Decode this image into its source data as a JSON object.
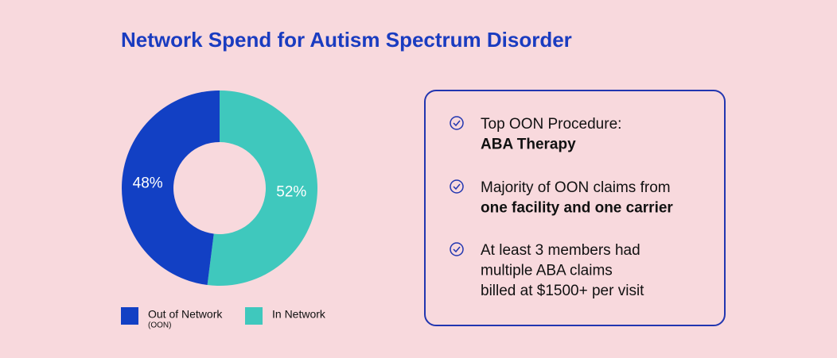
{
  "chart_data": {
    "type": "donut",
    "title": "Network Spend for Autism Spectrum Disorder",
    "categories": [
      "Out of Network",
      "In Network"
    ],
    "category_notes": [
      "(OON)",
      null
    ],
    "values": [
      48,
      52
    ],
    "value_labels": [
      "48%",
      "52%"
    ],
    "colors": [
      "#1240c4",
      "#3fc8bd"
    ]
  },
  "notes": [
    {
      "lines": [
        {
          "text": "Top OON Procedure:",
          "bold": false
        },
        {
          "text": "ABA Therapy",
          "bold": true
        }
      ]
    },
    {
      "lines": [
        {
          "text": "Majority of OON claims from",
          "bold": false
        },
        {
          "text": "one facility and one carrier",
          "bold": true
        }
      ]
    },
    {
      "lines": [
        {
          "text": "At least 3 members had",
          "bold": false
        },
        {
          "text": "multiple ABA claims",
          "bold": false
        },
        {
          "text": "billed at $1500+ per visit",
          "bold": false
        }
      ]
    }
  ]
}
